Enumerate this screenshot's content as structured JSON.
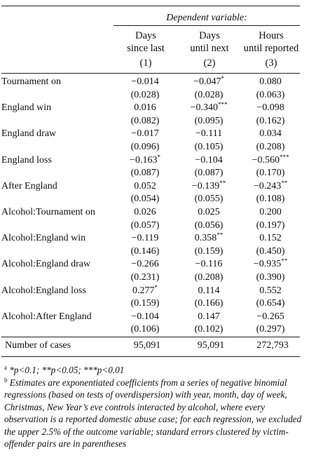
{
  "header": {
    "dependent_variable": "Dependent variable:",
    "columns": [
      {
        "line1": "Days",
        "line2": "since last",
        "num": "(1)"
      },
      {
        "line1": "Days",
        "line2": "until next",
        "num": "(2)"
      },
      {
        "line1": "Hours",
        "line2": "until reported",
        "num": "(3)"
      }
    ]
  },
  "rows": [
    {
      "label": "Tournament on",
      "coef": [
        {
          "v": "−0.014",
          "s": ""
        },
        {
          "v": "−0.047",
          "s": "*"
        },
        {
          "v": "0.080",
          "s": ""
        }
      ],
      "se": [
        "(0.028)",
        "(0.028)",
        "(0.063)"
      ]
    },
    {
      "label": "England win",
      "coef": [
        {
          "v": "0.016",
          "s": ""
        },
        {
          "v": "−0.340",
          "s": "***"
        },
        {
          "v": "−0.098",
          "s": ""
        }
      ],
      "se": [
        "(0.082)",
        "(0.095)",
        "(0.162)"
      ]
    },
    {
      "label": "England draw",
      "coef": [
        {
          "v": "−0.017",
          "s": ""
        },
        {
          "v": "−0.111",
          "s": ""
        },
        {
          "v": "0.034",
          "s": ""
        }
      ],
      "se": [
        "(0.096)",
        "(0.105)",
        "(0.208)"
      ]
    },
    {
      "label": "England loss",
      "coef": [
        {
          "v": "−0.163",
          "s": "*"
        },
        {
          "v": "−0.104",
          "s": ""
        },
        {
          "v": "−0.560",
          "s": "***"
        }
      ],
      "se": [
        "(0.087)",
        "(0.087)",
        "(0.170)"
      ]
    },
    {
      "label": "After England",
      "coef": [
        {
          "v": "0.052",
          "s": ""
        },
        {
          "v": "−0.139",
          "s": "**"
        },
        {
          "v": "−0.243",
          "s": "**"
        }
      ],
      "se": [
        "(0.054)",
        "(0.055)",
        "(0.108)"
      ]
    },
    {
      "label": "Alcohol:Tournament on",
      "coef": [
        {
          "v": "0.026",
          "s": ""
        },
        {
          "v": "0.025",
          "s": ""
        },
        {
          "v": "0.200",
          "s": ""
        }
      ],
      "se": [
        "(0.057)",
        "(0.056)",
        "(0.197)"
      ]
    },
    {
      "label": "Alcohol:England win",
      "coef": [
        {
          "v": "−0.119",
          "s": ""
        },
        {
          "v": "0.358",
          "s": "**"
        },
        {
          "v": "0.152",
          "s": ""
        }
      ],
      "se": [
        "(0.146)",
        "(0.159)",
        "(0.450)"
      ]
    },
    {
      "label": "Alcohol:England draw",
      "coef": [
        {
          "v": "−0.266",
          "s": ""
        },
        {
          "v": "−0.116",
          "s": ""
        },
        {
          "v": "−0.935",
          "s": "**"
        }
      ],
      "se": [
        "(0.231)",
        "(0.208)",
        "(0.390)"
      ]
    },
    {
      "label": "Alcohol:England loss",
      "coef": [
        {
          "v": "0.277",
          "s": "*"
        },
        {
          "v": "0.114",
          "s": ""
        },
        {
          "v": "0.552",
          "s": ""
        }
      ],
      "se": [
        "(0.159)",
        "(0.166)",
        "(0.654)"
      ]
    },
    {
      "label": "Alcohol:After England",
      "coef": [
        {
          "v": "−0.104",
          "s": ""
        },
        {
          "v": "0.147",
          "s": ""
        },
        {
          "v": "−0.265",
          "s": ""
        }
      ],
      "se": [
        "(0.106)",
        "(0.102)",
        "(0.297)"
      ]
    }
  ],
  "cases": {
    "label": "Number of cases",
    "values": [
      "95,091",
      "95,091",
      "272,793"
    ]
  },
  "notes": {
    "a_marker": "a",
    "a_text": "*p<0.1; **p<0.05; ***p<0.01",
    "b_marker": "b",
    "b_text": "Estimates are exponentiated coefficients from a series of negative binomial regressions (based on tests of overdispersion) with year, month, day of week, Christmas, New Year’s eve controls interacted by alcohol, where every observation is a reported domestic abuse case; for each regression, we excluded the upper 2.5% of the outcome variable; standard errors clustered by victim-offender pairs are in parentheses"
  }
}
